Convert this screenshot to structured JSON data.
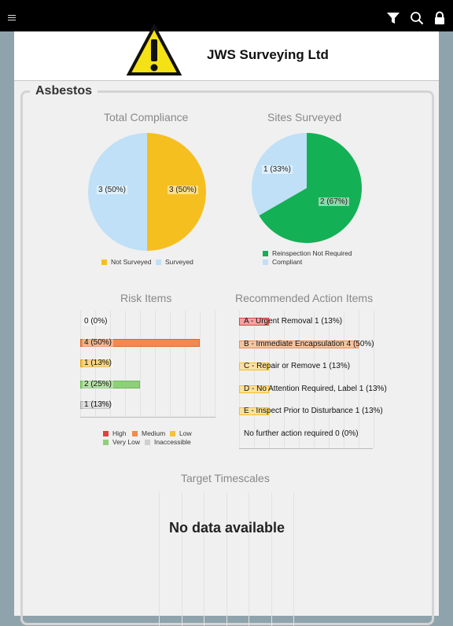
{
  "header": {
    "company_name": "JWS Surveying Ltd",
    "logo_icon": "warning-triangle-icon"
  },
  "toolbar": {
    "icons": [
      "menu-icon",
      "filter-icon",
      "search-icon",
      "lock-icon"
    ]
  },
  "section": {
    "title": "Asbestos"
  },
  "colors": {
    "high": "#e0413a",
    "medium": "#f28a4e",
    "low": "#f5c23c",
    "very_low": "#8ed07a",
    "inaccessible": "#cfcfcf",
    "compliance_not_surveyed": "#f5bf1f",
    "compliance_surveyed": "#bfe0f7",
    "reinspection": "#14b055",
    "compliant": "#bfe0f7"
  },
  "charts": {
    "total_compliance": {
      "chart_data": {
        "type": "pie",
        "title": "Total Compliance",
        "slices": [
          {
            "name": "Not Surveyed",
            "value": 3,
            "label": "3 (50%)"
          },
          {
            "name": "Surveyed",
            "value": 3,
            "label": "3 (50%)"
          }
        ]
      }
    },
    "sites_surveyed": {
      "chart_data": {
        "type": "pie",
        "title": "Sites Surveyed",
        "slices": [
          {
            "name": "Reinspection Not Required",
            "value": 2,
            "label": "2 (67%)"
          },
          {
            "name": "Compliant",
            "value": 1,
            "label": "1 (33%)"
          }
        ]
      }
    },
    "risk_items": {
      "chart_data": {
        "type": "bar",
        "title": "Risk Items",
        "xlim": [
          0,
          4
        ],
        "categories": [
          "High",
          "Medium",
          "Low",
          "Very Low",
          "Inaccessible"
        ],
        "values": [
          0,
          4,
          1,
          2,
          1
        ],
        "labels": [
          "0 (0%)",
          "4 (50%)",
          "1 (13%)",
          "2 (25%)",
          "1 (13%)"
        ]
      }
    },
    "recommended_actions": {
      "chart_data": {
        "type": "bar",
        "title": "Recommended Action Items",
        "xlim": [
          0,
          4
        ],
        "categories": [
          "A - Urgent Removal",
          "B - Immediate Encapsulation",
          "C - Repair or Remove",
          "D - No Attention Required, Label",
          "E - Inspect Prior to Disturbance",
          "No further action required"
        ],
        "values": [
          1,
          4,
          1,
          1,
          1,
          0
        ],
        "labels": [
          "A - Urgent Removal 1 (13%)",
          "B - Immediate Encapsulation 4 (50%)",
          "C - Repair or Remove 1 (13%)",
          "D - No Attention Required, Label 1 (13%)",
          "E - Inspect Prior to Disturbance 1 (13%)",
          "No further action required 0 (0%)"
        ]
      }
    },
    "target_timescales": {
      "chart_data": {
        "type": "bar",
        "title": "Target Timescales",
        "values": [],
        "message": "No data available"
      }
    }
  }
}
